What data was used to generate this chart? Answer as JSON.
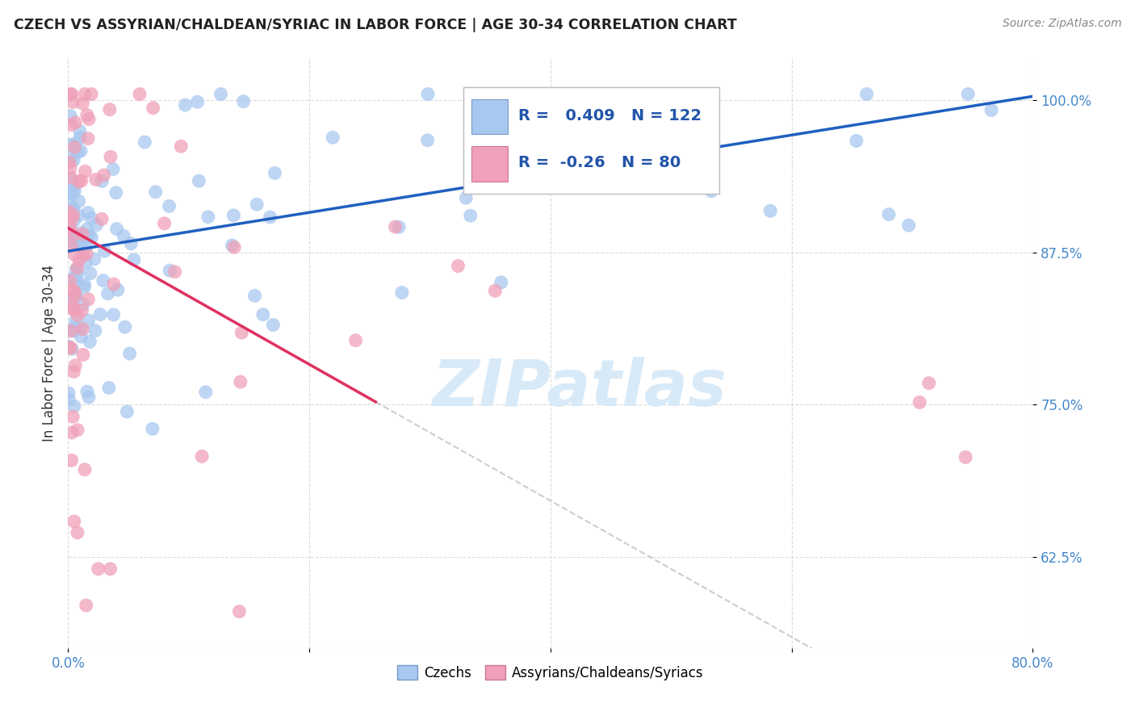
{
  "title": "CZECH VS ASSYRIAN/CHALDEAN/SYRIAC IN LABOR FORCE | AGE 30-34 CORRELATION CHART",
  "source": "Source: ZipAtlas.com",
  "ylabel": "In Labor Force | Age 30-34",
  "x_min": 0.0,
  "x_max": 0.8,
  "y_min": 0.55,
  "y_max": 1.035,
  "czechs_R": 0.409,
  "czechs_N": 122,
  "assyrian_R": -0.26,
  "assyrian_N": 80,
  "czechs_color": "#a8c8f0",
  "czechs_edge_color": "#a8c8f0",
  "czechs_line_color": "#2060c0",
  "assyrian_color": "#f0a0b8",
  "assyrian_edge_color": "#f0a0b8",
  "assyrian_line_color": "#e03060",
  "dash_color": "#c8c8c8",
  "watermark_color": "#d8eaf8",
  "legend_czechs": "Czechs",
  "legend_assyrians": "Assyrians/Chaldeans/Syriacs",
  "title_color": "#222222",
  "source_color": "#888888",
  "tick_color": "#4488cc",
  "ylabel_color": "#333333",
  "grid_color": "#cccccc"
}
